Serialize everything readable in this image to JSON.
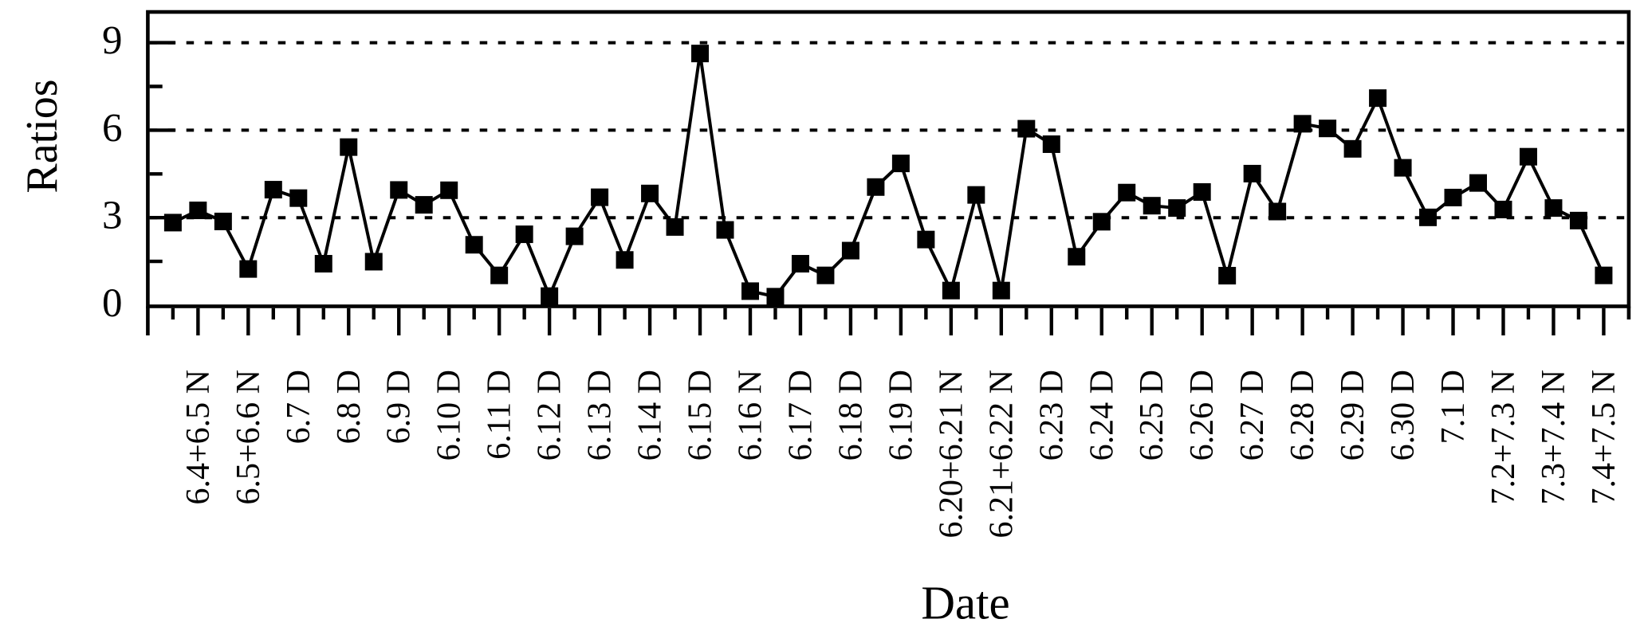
{
  "figure": {
    "background_color": "#ffffff",
    "ink_color": "#000000"
  },
  "chart_data": {
    "type": "line",
    "title": "",
    "xlabel": "Date",
    "ylabel": "Ratios",
    "ylim": [
      0,
      10.05
    ],
    "yticks": [
      0,
      3,
      6,
      9
    ],
    "y_minor_ticks": [
      1.5,
      4.5,
      7.5
    ],
    "gridlines_y": [
      3,
      6,
      9
    ],
    "grid_style": "dotted",
    "legend": "none",
    "marker": "filled-square",
    "line_style": "solid",
    "series_color": "#000000",
    "x_axis_positions_range": [
      0,
      59
    ],
    "x": [
      1,
      2,
      3,
      4,
      5,
      6,
      7,
      8,
      9,
      10,
      11,
      12,
      13,
      14,
      15,
      16,
      17,
      18,
      19,
      20,
      21,
      22,
      23,
      24,
      25,
      26,
      27,
      28,
      29,
      30,
      31,
      32,
      33,
      34,
      35,
      36,
      37,
      38,
      39,
      40,
      41,
      42,
      43,
      44,
      45,
      46,
      47,
      48,
      49,
      50,
      51,
      52,
      53,
      54,
      55,
      56,
      57,
      58
    ],
    "values": [
      2.83,
      3.25,
      2.87,
      1.24,
      3.96,
      3.67,
      1.42,
      5.42,
      1.49,
      3.95,
      3.44,
      3.94,
      2.07,
      1.02,
      2.43,
      0.31,
      2.36,
      3.7,
      1.55,
      3.83,
      2.68,
      8.63,
      2.58,
      0.48,
      0.29,
      1.42,
      1.02,
      1.87,
      4.05,
      4.86,
      2.25,
      0.5,
      3.78,
      0.5,
      6.05,
      5.52,
      1.66,
      2.86,
      3.86,
      3.41,
      3.33,
      3.88,
      1.01,
      4.51,
      3.21,
      6.22,
      6.06,
      5.36,
      7.1,
      4.71,
      3.01,
      3.69,
      4.19,
      3.28,
      5.09,
      3.33,
      2.9,
      1.02
    ],
    "x_tick_labels": [
      {
        "pos": 2,
        "label": "6.4+6.5 N"
      },
      {
        "pos": 4,
        "label": "6.5+6.6 N"
      },
      {
        "pos": 6,
        "label": "6.7 D"
      },
      {
        "pos": 8,
        "label": "6.8 D"
      },
      {
        "pos": 10,
        "label": "6.9 D"
      },
      {
        "pos": 12,
        "label": "6.10 D"
      },
      {
        "pos": 14,
        "label": "6.11 D"
      },
      {
        "pos": 16,
        "label": "6.12 D"
      },
      {
        "pos": 18,
        "label": "6.13 D"
      },
      {
        "pos": 20,
        "label": "6.14 D"
      },
      {
        "pos": 22,
        "label": "6.15 D"
      },
      {
        "pos": 24,
        "label": "6.16 N"
      },
      {
        "pos": 26,
        "label": "6.17 D"
      },
      {
        "pos": 28,
        "label": "6.18 D"
      },
      {
        "pos": 30,
        "label": "6.19 D"
      },
      {
        "pos": 32,
        "label": "6.20+6.21 N"
      },
      {
        "pos": 34,
        "label": "6.21+6.22 N"
      },
      {
        "pos": 36,
        "label": "6.23 D"
      },
      {
        "pos": 38,
        "label": "6.24 D"
      },
      {
        "pos": 40,
        "label": "6.25 D"
      },
      {
        "pos": 42,
        "label": "6.26 D"
      },
      {
        "pos": 44,
        "label": "6.27 D"
      },
      {
        "pos": 46,
        "label": "6.28 D"
      },
      {
        "pos": 48,
        "label": "6.29 D"
      },
      {
        "pos": 50,
        "label": "6.30 D"
      },
      {
        "pos": 52,
        "label": "7.1 D"
      },
      {
        "pos": 54,
        "label": "7.2+7.3 N"
      },
      {
        "pos": 56,
        "label": "7.3+7.4 N"
      },
      {
        "pos": 58,
        "label": "7.4+7.5 N"
      }
    ]
  }
}
